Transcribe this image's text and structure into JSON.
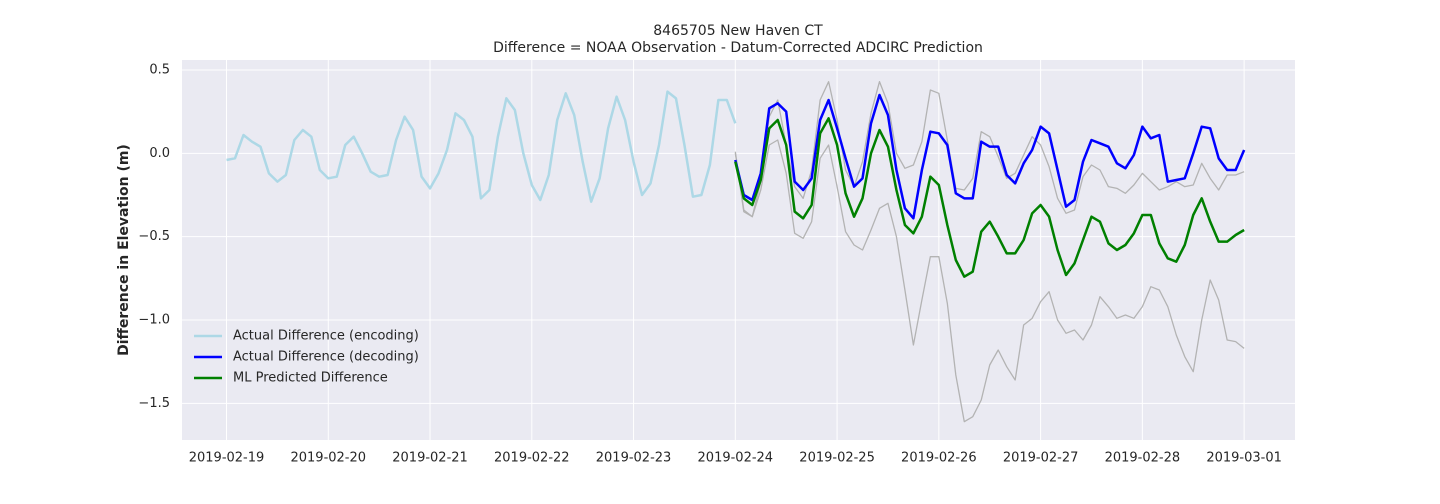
{
  "chart_data": {
    "type": "line",
    "title": "8465705 New Haven CT",
    "subtitle": "Difference = NOAA Observation - Datum-Corrected ADCIRC Prediction",
    "ylabel": "Difference in Elevation (m)",
    "xlim": [
      "2019-02-18 13:30",
      "2019-03-01 12:00"
    ],
    "ylim": [
      -1.72,
      0.56
    ],
    "xticks": [
      "2019-02-19",
      "2019-02-20",
      "2019-02-21",
      "2019-02-22",
      "2019-02-23",
      "2019-02-24",
      "2019-02-25",
      "2019-02-26",
      "2019-02-27",
      "2019-02-28",
      "2019-03-01"
    ],
    "yticks": [
      0.5,
      {
        "value": 0,
        "label": "0.0"
      },
      {
        "value": -0.5,
        "label": "−0.5"
      },
      {
        "value": -1,
        "label": "−1.0"
      },
      {
        "value": -1.5,
        "label": "−1.5"
      }
    ],
    "grid": true,
    "legend": "lower left",
    "series": [
      {
        "color": "#b3b3b3",
        "width": 1.3,
        "x": [
          "2019-02-24 00:00",
          "2019-02-24 02:00",
          "2019-02-24 04:00",
          "2019-02-24 06:00",
          "2019-02-24 08:00",
          "2019-02-24 10:00",
          "2019-02-24 12:00",
          "2019-02-24 14:00",
          "2019-02-24 16:00",
          "2019-02-24 18:00",
          "2019-02-24 20:00",
          "2019-02-24 22:00",
          "2019-02-25 00:00",
          "2019-02-25 02:00",
          "2019-02-25 04:00",
          "2019-02-25 06:00",
          "2019-02-25 08:00",
          "2019-02-25 10:00",
          "2019-02-25 12:00",
          "2019-02-25 14:00",
          "2019-02-25 16:00",
          "2019-02-25 18:00",
          "2019-02-25 20:00",
          "2019-02-25 22:00",
          "2019-02-26 00:00",
          "2019-02-26 02:00",
          "2019-02-26 04:00",
          "2019-02-26 06:00",
          "2019-02-26 08:00",
          "2019-02-26 10:00",
          "2019-02-26 12:00",
          "2019-02-26 14:00",
          "2019-02-26 16:00",
          "2019-02-26 18:00",
          "2019-02-26 20:00",
          "2019-02-26 22:00",
          "2019-02-27 00:00",
          "2019-02-27 02:00",
          "2019-02-27 04:00",
          "2019-02-27 06:00",
          "2019-02-27 08:00",
          "2019-02-27 10:00",
          "2019-02-27 12:00",
          "2019-02-27 14:00",
          "2019-02-27 16:00",
          "2019-02-27 18:00",
          "2019-02-27 20:00",
          "2019-02-27 22:00",
          "2019-02-28 00:00",
          "2019-02-28 02:00",
          "2019-02-28 04:00",
          "2019-02-28 06:00",
          "2019-02-28 08:00",
          "2019-02-28 10:00",
          "2019-02-28 12:00",
          "2019-02-28 14:00",
          "2019-02-28 16:00",
          "2019-02-28 18:00",
          "2019-02-28 20:00",
          "2019-02-28 22:00",
          "2019-03-01 00:00"
        ],
        "values": [
          0.01,
          -0.34,
          -0.38,
          -0.17,
          0.22,
          0.32,
          0.05,
          -0.2,
          -0.27,
          -0.1,
          0.32,
          0.43,
          0.2,
          -0.1,
          -0.2,
          -0.05,
          0.24,
          0.43,
          0.3,
          0.0,
          -0.09,
          -0.07,
          0.07,
          0.38,
          0.36,
          0.08,
          -0.21,
          -0.22,
          -0.15,
          0.13,
          0.1,
          -0.02,
          -0.15,
          -0.12,
          -0.01,
          0.1,
          0.05,
          -0.08,
          -0.27,
          -0.36,
          -0.34,
          -0.14,
          -0.07,
          -0.1,
          -0.2,
          -0.21,
          -0.24,
          -0.19,
          -0.12,
          -0.17,
          -0.22,
          -0.2,
          -0.17,
          -0.2,
          -0.19,
          -0.06,
          -0.15,
          -0.22,
          -0.13,
          -0.13,
          -0.11
        ]
      },
      {
        "color": "#b3b3b3",
        "width": 1.3,
        "x": [
          "2019-02-24 00:00",
          "2019-02-24 02:00",
          "2019-02-24 04:00",
          "2019-02-24 06:00",
          "2019-02-24 08:00",
          "2019-02-24 10:00",
          "2019-02-24 12:00",
          "2019-02-24 14:00",
          "2019-02-24 16:00",
          "2019-02-24 18:00",
          "2019-02-24 20:00",
          "2019-02-24 22:00",
          "2019-02-25 00:00",
          "2019-02-25 02:00",
          "2019-02-25 04:00",
          "2019-02-25 06:00",
          "2019-02-25 08:00",
          "2019-02-25 10:00",
          "2019-02-25 12:00",
          "2019-02-25 14:00",
          "2019-02-25 16:00",
          "2019-02-25 18:00",
          "2019-02-25 20:00",
          "2019-02-25 22:00",
          "2019-02-26 00:00",
          "2019-02-26 02:00",
          "2019-02-26 04:00",
          "2019-02-26 06:00",
          "2019-02-26 08:00",
          "2019-02-26 10:00",
          "2019-02-26 12:00",
          "2019-02-26 14:00",
          "2019-02-26 16:00",
          "2019-02-26 18:00",
          "2019-02-26 20:00",
          "2019-02-26 22:00",
          "2019-02-27 00:00",
          "2019-02-27 02:00",
          "2019-02-27 04:00",
          "2019-02-27 06:00",
          "2019-02-27 08:00",
          "2019-02-27 10:00",
          "2019-02-27 12:00",
          "2019-02-27 14:00",
          "2019-02-27 16:00",
          "2019-02-27 18:00",
          "2019-02-27 20:00",
          "2019-02-27 22:00",
          "2019-02-28 00:00",
          "2019-02-28 02:00",
          "2019-02-28 04:00",
          "2019-02-28 06:00",
          "2019-02-28 08:00",
          "2019-02-28 10:00",
          "2019-02-28 12:00",
          "2019-02-28 14:00",
          "2019-02-28 16:00",
          "2019-02-28 18:00",
          "2019-02-28 20:00",
          "2019-02-28 22:00",
          "2019-03-01 00:00"
        ],
        "values": [
          0.0,
          -0.35,
          -0.38,
          -0.22,
          0.05,
          0.08,
          -0.12,
          -0.48,
          -0.51,
          -0.41,
          -0.03,
          0.05,
          -0.2,
          -0.47,
          -0.55,
          -0.58,
          -0.46,
          -0.33,
          -0.3,
          -0.5,
          -0.82,
          -1.15,
          -0.88,
          -0.62,
          -0.62,
          -0.9,
          -1.33,
          -1.61,
          -1.58,
          -1.48,
          -1.27,
          -1.18,
          -1.28,
          -1.36,
          -1.03,
          -0.99,
          -0.89,
          -0.83,
          -1.0,
          -1.08,
          -1.06,
          -1.12,
          -1.03,
          -0.86,
          -0.92,
          -0.99,
          -0.97,
          -0.99,
          -0.92,
          -0.8,
          -0.82,
          -0.92,
          -1.09,
          -1.22,
          -1.31,
          -1.0,
          -0.76,
          -0.88,
          -1.12,
          -1.13,
          -1.17
        ]
      },
      {
        "name": "Actual Difference (encoding)",
        "color": "#add8e6",
        "width": 2.5,
        "x": [
          "2019-02-19 00:00",
          "2019-02-19 02:00",
          "2019-02-19 04:00",
          "2019-02-19 06:00",
          "2019-02-19 08:00",
          "2019-02-19 10:00",
          "2019-02-19 12:00",
          "2019-02-19 14:00",
          "2019-02-19 16:00",
          "2019-02-19 18:00",
          "2019-02-19 20:00",
          "2019-02-19 22:00",
          "2019-02-20 00:00",
          "2019-02-20 02:00",
          "2019-02-20 04:00",
          "2019-02-20 06:00",
          "2019-02-20 08:00",
          "2019-02-20 10:00",
          "2019-02-20 12:00",
          "2019-02-20 14:00",
          "2019-02-20 16:00",
          "2019-02-20 18:00",
          "2019-02-20 20:00",
          "2019-02-20 22:00",
          "2019-02-21 00:00",
          "2019-02-21 02:00",
          "2019-02-21 04:00",
          "2019-02-21 06:00",
          "2019-02-21 08:00",
          "2019-02-21 10:00",
          "2019-02-21 12:00",
          "2019-02-21 14:00",
          "2019-02-21 16:00",
          "2019-02-21 18:00",
          "2019-02-21 20:00",
          "2019-02-21 22:00",
          "2019-02-22 00:00",
          "2019-02-22 02:00",
          "2019-02-22 04:00",
          "2019-02-22 06:00",
          "2019-02-22 08:00",
          "2019-02-22 10:00",
          "2019-02-22 12:00",
          "2019-02-22 14:00",
          "2019-02-22 16:00",
          "2019-02-22 18:00",
          "2019-02-22 20:00",
          "2019-02-22 22:00",
          "2019-02-23 00:00",
          "2019-02-23 02:00",
          "2019-02-23 04:00",
          "2019-02-23 06:00",
          "2019-02-23 08:00",
          "2019-02-23 10:00",
          "2019-02-23 12:00",
          "2019-02-23 14:00",
          "2019-02-23 16:00",
          "2019-02-23 18:00",
          "2019-02-23 20:00",
          "2019-02-23 22:00",
          "2019-02-24 00:00"
        ],
        "values": [
          -0.04,
          -0.03,
          0.11,
          0.07,
          0.04,
          -0.12,
          -0.17,
          -0.13,
          0.08,
          0.14,
          0.1,
          -0.1,
          -0.15,
          -0.14,
          0.05,
          0.1,
          0.0,
          -0.11,
          -0.14,
          -0.13,
          0.08,
          0.22,
          0.14,
          -0.14,
          -0.21,
          -0.12,
          0.02,
          0.24,
          0.2,
          0.1,
          -0.27,
          -0.22,
          0.1,
          0.33,
          0.26,
          0.0,
          -0.19,
          -0.28,
          -0.13,
          0.2,
          0.36,
          0.23,
          -0.05,
          -0.29,
          -0.15,
          0.15,
          0.34,
          0.2,
          -0.05,
          -0.25,
          -0.18,
          0.05,
          0.37,
          0.33,
          0.05,
          -0.26,
          -0.25,
          -0.07,
          0.32,
          0.32,
          0.18
        ]
      },
      {
        "name": "Actual Difference (decoding)",
        "color": "#0000ff",
        "width": 2.5,
        "x": [
          "2019-02-24 00:00",
          "2019-02-24 02:00",
          "2019-02-24 04:00",
          "2019-02-24 06:00",
          "2019-02-24 08:00",
          "2019-02-24 10:00",
          "2019-02-24 12:00",
          "2019-02-24 14:00",
          "2019-02-24 16:00",
          "2019-02-24 18:00",
          "2019-02-24 20:00",
          "2019-02-24 22:00",
          "2019-02-25 00:00",
          "2019-02-25 02:00",
          "2019-02-25 04:00",
          "2019-02-25 06:00",
          "2019-02-25 08:00",
          "2019-02-25 10:00",
          "2019-02-25 12:00",
          "2019-02-25 14:00",
          "2019-02-25 16:00",
          "2019-02-25 18:00",
          "2019-02-25 20:00",
          "2019-02-25 22:00",
          "2019-02-26 00:00",
          "2019-02-26 02:00",
          "2019-02-26 04:00",
          "2019-02-26 06:00",
          "2019-02-26 08:00",
          "2019-02-26 10:00",
          "2019-02-26 12:00",
          "2019-02-26 14:00",
          "2019-02-26 16:00",
          "2019-02-26 18:00",
          "2019-02-26 20:00",
          "2019-02-26 22:00",
          "2019-02-27 00:00",
          "2019-02-27 02:00",
          "2019-02-27 04:00",
          "2019-02-27 06:00",
          "2019-02-27 08:00",
          "2019-02-27 10:00",
          "2019-02-27 12:00",
          "2019-02-27 14:00",
          "2019-02-27 16:00",
          "2019-02-27 18:00",
          "2019-02-27 20:00",
          "2019-02-27 22:00",
          "2019-02-28 00:00",
          "2019-02-28 02:00",
          "2019-02-28 04:00",
          "2019-02-28 06:00",
          "2019-02-28 08:00",
          "2019-02-28 10:00",
          "2019-02-28 12:00",
          "2019-02-28 14:00",
          "2019-02-28 16:00",
          "2019-02-28 18:00",
          "2019-02-28 20:00",
          "2019-02-28 22:00",
          "2019-03-01 00:00"
        ],
        "values": [
          -0.04,
          -0.25,
          -0.28,
          -0.12,
          0.27,
          0.3,
          0.25,
          -0.17,
          -0.22,
          -0.15,
          0.2,
          0.32,
          0.15,
          -0.03,
          -0.2,
          -0.15,
          0.18,
          0.35,
          0.23,
          -0.1,
          -0.33,
          -0.39,
          -0.1,
          0.13,
          0.12,
          0.05,
          -0.24,
          -0.27,
          -0.27,
          0.07,
          0.04,
          0.04,
          -0.13,
          -0.18,
          -0.06,
          0.02,
          0.16,
          0.12,
          -0.1,
          -0.32,
          -0.28,
          -0.05,
          0.08,
          0.06,
          0.04,
          -0.06,
          -0.09,
          -0.01,
          0.16,
          0.09,
          0.11,
          -0.17,
          -0.16,
          -0.15,
          0.0,
          0.16,
          0.15,
          -0.03,
          -0.1,
          -0.1,
          0.02
        ]
      },
      {
        "name": "ML Predicted Difference",
        "color": "#008000",
        "width": 2.5,
        "x": [
          "2019-02-24 00:00",
          "2019-02-24 02:00",
          "2019-02-24 04:00",
          "2019-02-24 06:00",
          "2019-02-24 08:00",
          "2019-02-24 10:00",
          "2019-02-24 12:00",
          "2019-02-24 14:00",
          "2019-02-24 16:00",
          "2019-02-24 18:00",
          "2019-02-24 20:00",
          "2019-02-24 22:00",
          "2019-02-25 00:00",
          "2019-02-25 02:00",
          "2019-02-25 04:00",
          "2019-02-25 06:00",
          "2019-02-25 08:00",
          "2019-02-25 10:00",
          "2019-02-25 12:00",
          "2019-02-25 14:00",
          "2019-02-25 16:00",
          "2019-02-25 18:00",
          "2019-02-25 20:00",
          "2019-02-25 22:00",
          "2019-02-26 00:00",
          "2019-02-26 02:00",
          "2019-02-26 04:00",
          "2019-02-26 06:00",
          "2019-02-26 08:00",
          "2019-02-26 10:00",
          "2019-02-26 12:00",
          "2019-02-26 14:00",
          "2019-02-26 16:00",
          "2019-02-26 18:00",
          "2019-02-26 20:00",
          "2019-02-26 22:00",
          "2019-02-27 00:00",
          "2019-02-27 02:00",
          "2019-02-27 04:00",
          "2019-02-27 06:00",
          "2019-02-27 08:00",
          "2019-02-27 10:00",
          "2019-02-27 12:00",
          "2019-02-27 14:00",
          "2019-02-27 16:00",
          "2019-02-27 18:00",
          "2019-02-27 20:00",
          "2019-02-27 22:00",
          "2019-02-28 00:00",
          "2019-02-28 02:00",
          "2019-02-28 04:00",
          "2019-02-28 06:00",
          "2019-02-28 08:00",
          "2019-02-28 10:00",
          "2019-02-28 12:00",
          "2019-02-28 14:00",
          "2019-02-28 16:00",
          "2019-02-28 18:00",
          "2019-02-28 20:00",
          "2019-02-28 22:00",
          "2019-03-01 00:00"
        ],
        "values": [
          -0.05,
          -0.27,
          -0.31,
          -0.16,
          0.15,
          0.2,
          0.05,
          -0.35,
          -0.39,
          -0.31,
          0.12,
          0.21,
          0.05,
          -0.24,
          -0.38,
          -0.27,
          0.0,
          0.14,
          0.04,
          -0.22,
          -0.43,
          -0.48,
          -0.38,
          -0.14,
          -0.19,
          -0.43,
          -0.64,
          -0.74,
          -0.71,
          -0.47,
          -0.41,
          -0.5,
          -0.6,
          -0.6,
          -0.52,
          -0.36,
          -0.31,
          -0.38,
          -0.58,
          -0.73,
          -0.66,
          -0.52,
          -0.38,
          -0.41,
          -0.54,
          -0.58,
          -0.55,
          -0.48,
          -0.37,
          -0.37,
          -0.54,
          -0.63,
          -0.65,
          -0.55,
          -0.37,
          -0.27,
          -0.41,
          -0.53,
          -0.53,
          -0.49,
          -0.46
        ]
      }
    ]
  }
}
